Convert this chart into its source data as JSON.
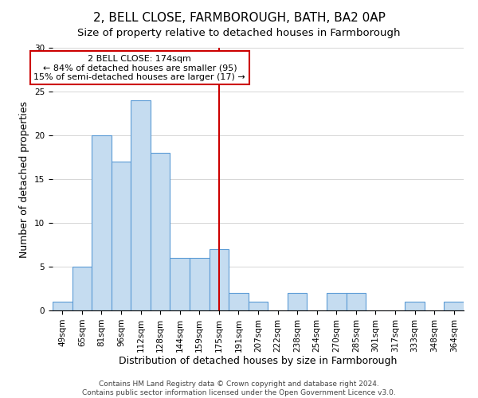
{
  "title": "2, BELL CLOSE, FARMBOROUGH, BATH, BA2 0AP",
  "subtitle": "Size of property relative to detached houses in Farmborough",
  "xlabel": "Distribution of detached houses by size in Farmborough",
  "ylabel": "Number of detached properties",
  "bar_labels": [
    "49sqm",
    "65sqm",
    "81sqm",
    "96sqm",
    "112sqm",
    "128sqm",
    "144sqm",
    "159sqm",
    "175sqm",
    "191sqm",
    "207sqm",
    "222sqm",
    "238sqm",
    "254sqm",
    "270sqm",
    "285sqm",
    "301sqm",
    "317sqm",
    "333sqm",
    "348sqm",
    "364sqm"
  ],
  "bar_heights": [
    1,
    5,
    20,
    17,
    24,
    18,
    6,
    6,
    7,
    2,
    1,
    0,
    2,
    0,
    2,
    2,
    0,
    0,
    1,
    0,
    1
  ],
  "bar_color": "#c5dcf0",
  "bar_edgecolor": "#5b9bd5",
  "vline_x_index": 8,
  "vline_color": "#cc0000",
  "annotation_title": "2 BELL CLOSE: 174sqm",
  "annotation_line1": "← 84% of detached houses are smaller (95)",
  "annotation_line2": "15% of semi-detached houses are larger (17) →",
  "annotation_box_edgecolor": "#cc0000",
  "ylim": [
    0,
    30
  ],
  "yticks": [
    0,
    5,
    10,
    15,
    20,
    25,
    30
  ],
  "footer1": "Contains HM Land Registry data © Crown copyright and database right 2024.",
  "footer2": "Contains public sector information licensed under the Open Government Licence v3.0.",
  "title_fontsize": 11,
  "subtitle_fontsize": 9.5,
  "axis_label_fontsize": 9,
  "tick_fontsize": 7.5,
  "annotation_fontsize": 8,
  "footer_fontsize": 6.5
}
